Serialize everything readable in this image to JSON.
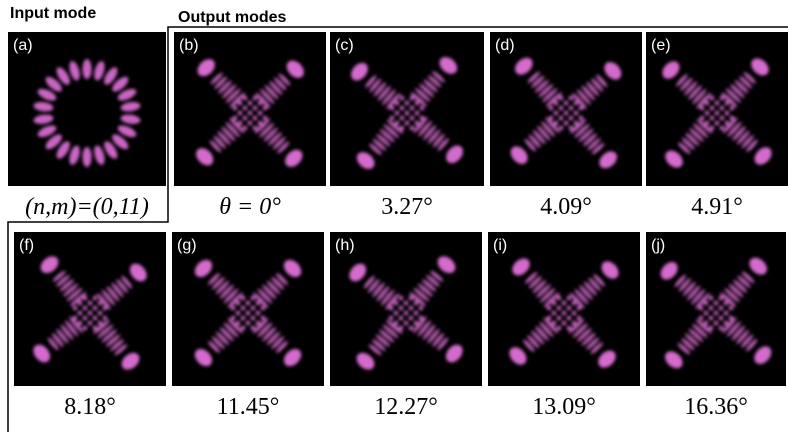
{
  "header": {
    "input_title": "Input mode",
    "output_title": "Output modes"
  },
  "panels": [
    {
      "label": "(a)",
      "caption": "(n,m)=(0,11)"
    },
    {
      "label": "(b)",
      "caption": "θ = 0°"
    },
    {
      "label": "(c)",
      "caption": "3.27°"
    },
    {
      "label": "(d)",
      "caption": "4.09°"
    },
    {
      "label": "(e)",
      "caption": "4.91°"
    },
    {
      "label": "(f)",
      "caption": "8.18°"
    },
    {
      "label": "(g)",
      "caption": "11.45°"
    },
    {
      "label": "(h)",
      "caption": "12.27°"
    },
    {
      "label": "(i)",
      "caption": "13.09°"
    },
    {
      "label": "(j)",
      "caption": "16.36°"
    }
  ]
}
